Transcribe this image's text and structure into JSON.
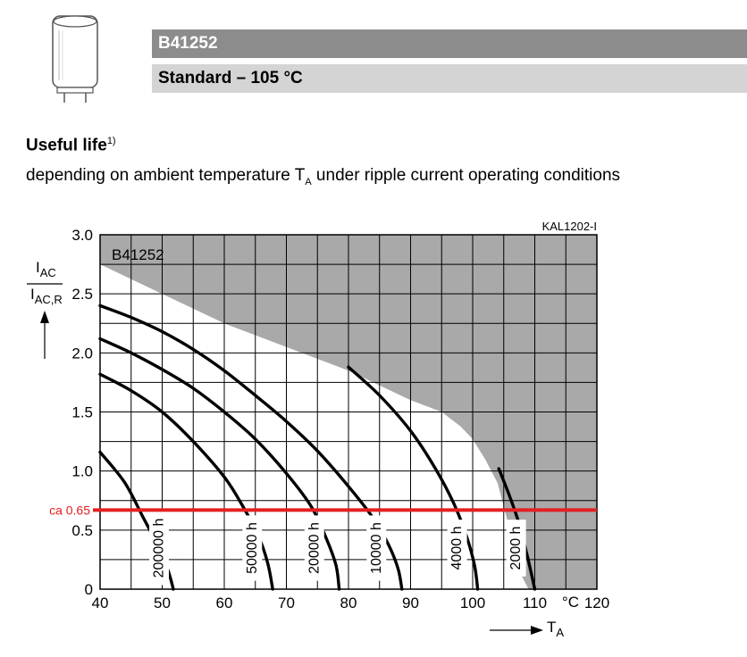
{
  "header": {
    "part_number": "B41252",
    "series_line": "Standard – 105 °C"
  },
  "section": {
    "title": "Useful life",
    "footnote_ref": "1)",
    "subtitle_pre": "depending on ambient temperature T",
    "subtitle_sub": "A",
    "subtitle_post": " under ripple current operating conditions"
  },
  "colors": {
    "header_dark": "#8c8c8c",
    "header_light": "#d4d4d4",
    "forbidden_region": "#a9a9a9",
    "curve": "#000000",
    "marker_line": "#e32020"
  },
  "icons": [
    "capacitor-icon",
    "arrow-up-icon",
    "arrow-right-icon"
  ],
  "chart_data": {
    "type": "line",
    "code": "KAL1202-I",
    "part_label": "B41252",
    "x_unit": "°C",
    "x_label": "T",
    "x_label_sub": "A",
    "y_label_num": "I",
    "y_label_num_sub": "AC",
    "y_label_den": "I",
    "y_label_den_sub": "AC,R",
    "xlim": [
      40,
      120
    ],
    "ylim": [
      0,
      3.0
    ],
    "x_ticks": [
      40,
      50,
      60,
      70,
      80,
      90,
      100,
      110,
      120
    ],
    "y_ticks": [
      "0",
      "0.5",
      "1.0",
      "1.5",
      "2.0",
      "2.5",
      "3.0"
    ],
    "grid": true,
    "marker": {
      "label": "ca 0.65",
      "y": 0.67
    },
    "forbidden_region_boundary": [
      [
        40,
        2.75
      ],
      [
        50,
        2.5
      ],
      [
        60,
        2.25
      ],
      [
        70,
        2.05
      ],
      [
        80,
        1.85
      ],
      [
        90,
        1.6
      ],
      [
        95,
        1.5
      ],
      [
        98,
        1.38
      ],
      [
        100,
        1.27
      ],
      [
        102,
        1.1
      ],
      [
        104,
        0.9
      ],
      [
        106,
        0.5
      ],
      [
        108,
        0.1
      ],
      [
        109,
        0
      ]
    ],
    "series": [
      {
        "name": "200000 h",
        "points": [
          [
            40,
            1.16
          ],
          [
            44,
            0.9
          ],
          [
            47,
            0.6
          ],
          [
            49.5,
            0.35
          ],
          [
            51,
            0.15
          ],
          [
            51.8,
            0
          ]
        ]
      },
      {
        "name": "50000 h",
        "points": [
          [
            40,
            1.82
          ],
          [
            45,
            1.68
          ],
          [
            50,
            1.5
          ],
          [
            55,
            1.25
          ],
          [
            60,
            0.95
          ],
          [
            63,
            0.7
          ],
          [
            65.5,
            0.45
          ],
          [
            67,
            0.22
          ],
          [
            67.8,
            0
          ]
        ]
      },
      {
        "name": "20000 h",
        "points": [
          [
            40,
            2.12
          ],
          [
            45,
            2.0
          ],
          [
            50,
            1.86
          ],
          [
            55,
            1.7
          ],
          [
            60,
            1.5
          ],
          [
            65,
            1.27
          ],
          [
            70,
            0.98
          ],
          [
            74,
            0.7
          ],
          [
            76.5,
            0.42
          ],
          [
            78,
            0.2
          ],
          [
            78.5,
            0
          ]
        ]
      },
      {
        "name": "10000 h",
        "points": [
          [
            40,
            2.4
          ],
          [
            45,
            2.3
          ],
          [
            50,
            2.18
          ],
          [
            55,
            2.03
          ],
          [
            60,
            1.85
          ],
          [
            65,
            1.64
          ],
          [
            70,
            1.42
          ],
          [
            75,
            1.17
          ],
          [
            80,
            0.87
          ],
          [
            84,
            0.6
          ],
          [
            86.5,
            0.37
          ],
          [
            88,
            0.17
          ],
          [
            88.6,
            0
          ]
        ]
      },
      {
        "name": "4000 h",
        "points": [
          [
            80,
            1.88
          ],
          [
            85,
            1.64
          ],
          [
            90,
            1.34
          ],
          [
            94,
            1.02
          ],
          [
            97,
            0.72
          ],
          [
            99,
            0.45
          ],
          [
            100.3,
            0.2
          ],
          [
            100.8,
            0
          ]
        ]
      },
      {
        "name": "2000 h",
        "points": [
          [
            104.2,
            1.02
          ],
          [
            106,
            0.78
          ],
          [
            107.5,
            0.55
          ],
          [
            108.7,
            0.3
          ],
          [
            109.5,
            0.12
          ],
          [
            110,
            0
          ]
        ]
      }
    ]
  }
}
